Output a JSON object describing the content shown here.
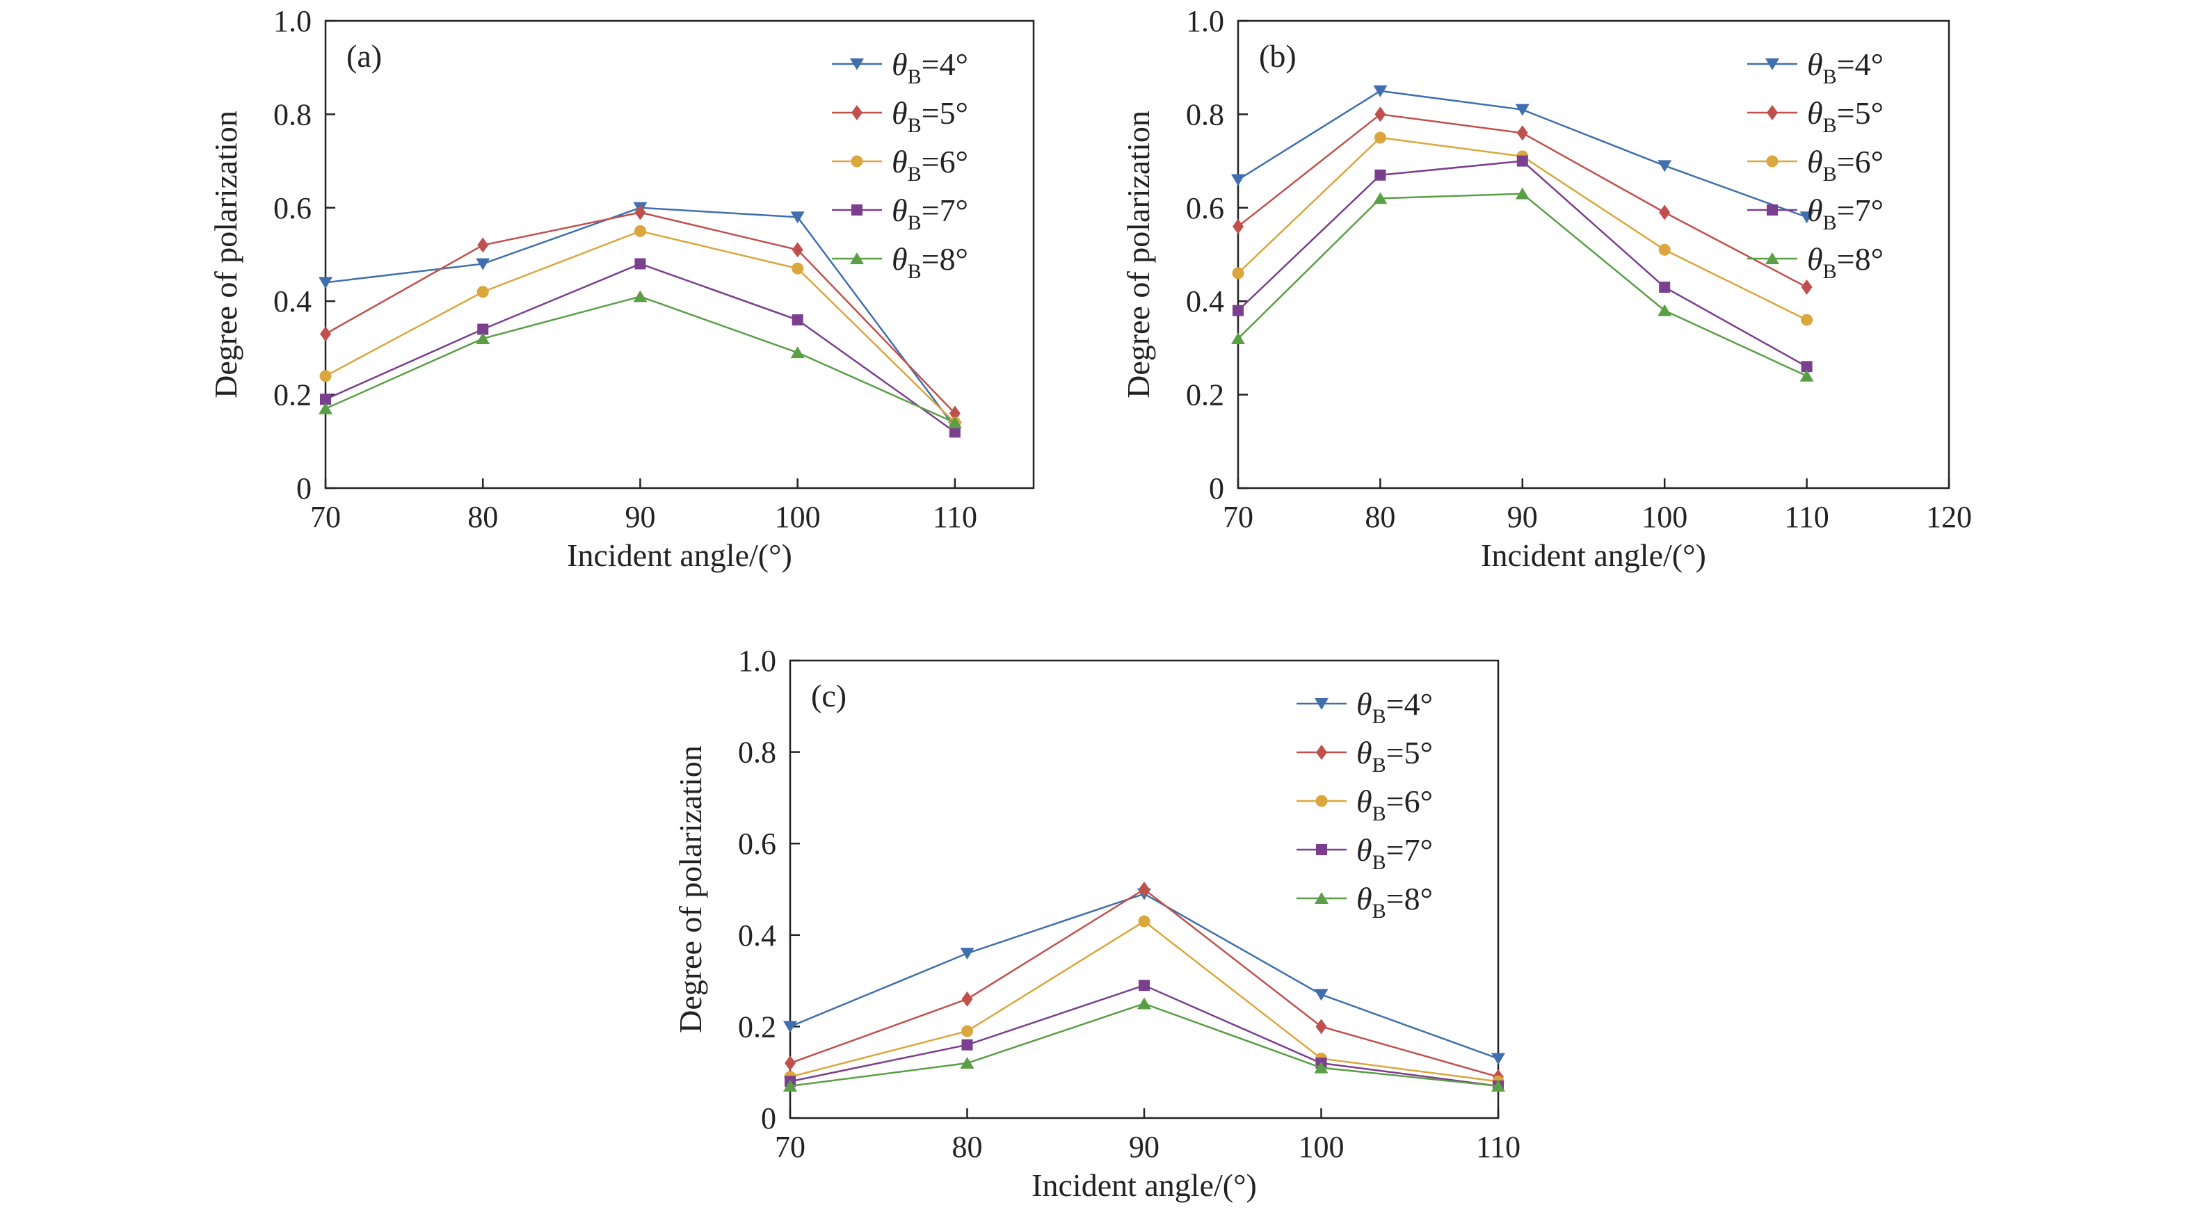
{
  "chart_data": [
    {
      "panel": "(a)",
      "type": "line",
      "xlabel": "Incident angle/(°)",
      "ylabel": "Degree of polarization",
      "xlim": [
        70,
        115
      ],
      "ylim": [
        0,
        1.0
      ],
      "xticks": [
        "70",
        "80",
        "90",
        "100",
        "110"
      ],
      "yticks": [
        "0",
        "0.2",
        "0.4",
        "0.6",
        "0.8",
        "1.0"
      ],
      "x": [
        70,
        80,
        90,
        100,
        110
      ],
      "legend_position": "top-right",
      "grid": false,
      "series": [
        {
          "name": "θ_B=4°",
          "values": [
            0.44,
            0.48,
            0.6,
            0.58,
            0.13
          ]
        },
        {
          "name": "θ_B=5°",
          "values": [
            0.33,
            0.52,
            0.59,
            0.51,
            0.16
          ]
        },
        {
          "name": "θ_B=6°",
          "values": [
            0.24,
            0.42,
            0.55,
            0.47,
            0.14
          ]
        },
        {
          "name": "θ_B=7°",
          "values": [
            0.19,
            0.34,
            0.48,
            0.36,
            0.12
          ]
        },
        {
          "name": "θ_B=8°",
          "values": [
            0.17,
            0.32,
            0.41,
            0.29,
            0.14
          ]
        }
      ]
    },
    {
      "panel": "(b)",
      "type": "line",
      "xlabel": "Incident angle/(°)",
      "ylabel": "Degree of polarization",
      "xlim": [
        70,
        120
      ],
      "ylim": [
        0,
        1.0
      ],
      "xticks": [
        "70",
        "80",
        "90",
        "100",
        "110",
        "120"
      ],
      "yticks": [
        "0",
        "0.2",
        "0.4",
        "0.6",
        "0.8",
        "1.0"
      ],
      "x": [
        70,
        80,
        90,
        100,
        110
      ],
      "legend_position": "top-right",
      "grid": false,
      "series": [
        {
          "name": "θ_B=4°",
          "values": [
            0.66,
            0.85,
            0.81,
            0.69,
            0.58
          ]
        },
        {
          "name": "θ_B=5°",
          "values": [
            0.56,
            0.8,
            0.76,
            0.59,
            0.43
          ]
        },
        {
          "name": "θ_B=6°",
          "values": [
            0.46,
            0.75,
            0.71,
            0.51,
            0.36
          ]
        },
        {
          "name": "θ_B=7°",
          "values": [
            0.38,
            0.67,
            0.7,
            0.43,
            0.26
          ]
        },
        {
          "name": "θ_B=8°",
          "values": [
            0.32,
            0.62,
            0.63,
            0.38,
            0.24
          ]
        }
      ]
    },
    {
      "panel": "(c)",
      "type": "line",
      "xlabel": "Incident angle/(°)",
      "ylabel": "Degree of polarization",
      "xlim": [
        70,
        110
      ],
      "ylim": [
        0,
        1.0
      ],
      "xticks": [
        "70",
        "80",
        "90",
        "100",
        "110"
      ],
      "yticks": [
        "0",
        "0.2",
        "0.4",
        "0.6",
        "0.8",
        "1.0"
      ],
      "x": [
        70,
        80,
        90,
        100,
        110
      ],
      "legend_position": "top-right",
      "grid": false,
      "series": [
        {
          "name": "θ_B=4°",
          "values": [
            0.2,
            0.36,
            0.49,
            0.27,
            0.13
          ]
        },
        {
          "name": "θ_B=5°",
          "values": [
            0.12,
            0.26,
            0.5,
            0.2,
            0.09
          ]
        },
        {
          "name": "θ_B=6°",
          "values": [
            0.09,
            0.19,
            0.43,
            0.13,
            0.08
          ]
        },
        {
          "name": "θ_B=7°",
          "values": [
            0.08,
            0.16,
            0.29,
            0.12,
            0.07
          ]
        },
        {
          "name": "θ_B=8°",
          "values": [
            0.07,
            0.12,
            0.25,
            0.11,
            0.07
          ]
        }
      ]
    }
  ],
  "series_styles": [
    {
      "color": "#3f6fae",
      "marker": "triangle-down"
    },
    {
      "color": "#c0504d",
      "marker": "diamond"
    },
    {
      "color": "#dba63c",
      "marker": "circle"
    },
    {
      "color": "#7a3f8e",
      "marker": "square"
    },
    {
      "color": "#5a9f46",
      "marker": "triangle-up"
    }
  ]
}
